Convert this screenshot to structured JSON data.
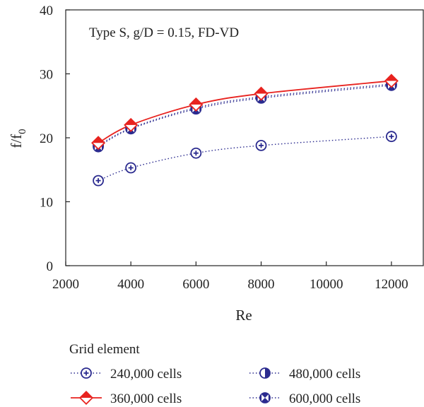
{
  "chart_data": {
    "type": "line",
    "annotation": "Type S, g/D = 0.15, FD-VD",
    "xlabel": "Re",
    "ylabel": "f/f",
    "ylabel_sub": "0",
    "xlim": [
      2000,
      13000
    ],
    "ylim": [
      0,
      40
    ],
    "xticks": [
      2000,
      4000,
      6000,
      8000,
      10000,
      12000
    ],
    "yticks": [
      0,
      10,
      20,
      30,
      40
    ],
    "grid": false,
    "legend_title": "Grid element",
    "legend_position": "bottom",
    "x": [
      3000,
      4000,
      6000,
      8000,
      12000
    ],
    "series": [
      {
        "name": "240,000 cells",
        "values": [
          13.3,
          15.3,
          17.6,
          18.8,
          20.2
        ],
        "color": "#2b2b8f",
        "line": "dotted",
        "marker": "circle-plus"
      },
      {
        "name": "360,000 cells",
        "values": [
          19.2,
          22.0,
          25.2,
          26.9,
          28.9
        ],
        "color": "#e8231f",
        "line": "solid",
        "marker": "diamond-half"
      },
      {
        "name": "480,000 cells",
        "values": [
          18.8,
          21.5,
          24.7,
          26.4,
          28.4
        ],
        "color": "#2b2b8f",
        "line": "dotted",
        "marker": "circle-half"
      },
      {
        "name": "600,000 cells",
        "values": [
          18.6,
          21.4,
          24.5,
          26.2,
          28.2
        ],
        "color": "#2b2b8f",
        "line": "dotted",
        "marker": "circle-bowtie"
      }
    ]
  }
}
